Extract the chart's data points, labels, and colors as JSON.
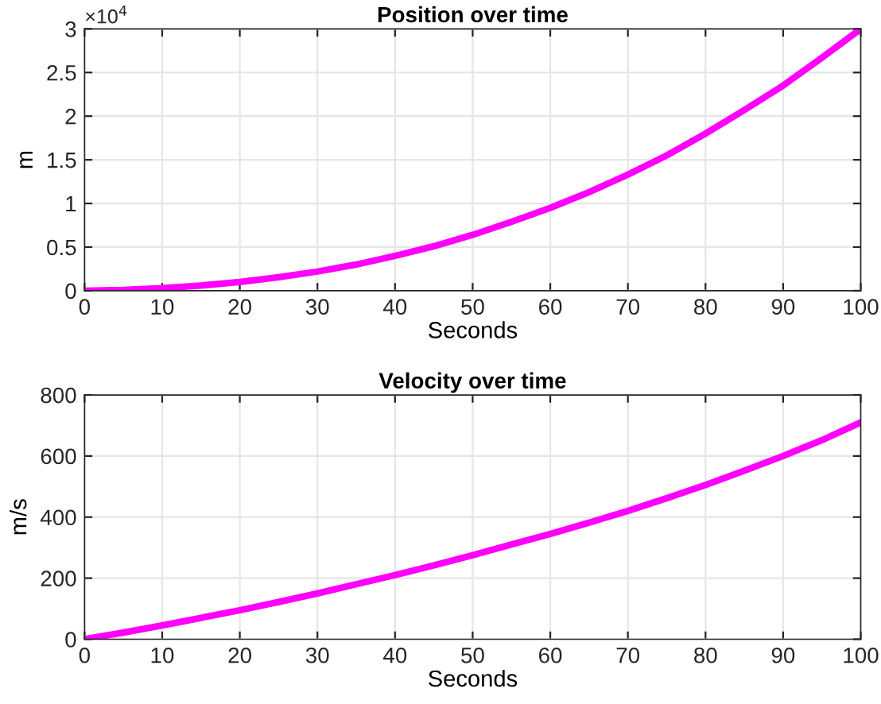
{
  "chart_data": [
    {
      "type": "line",
      "title": "Position over time",
      "xlabel": "Seconds",
      "ylabel": "m",
      "annotations": [
        "×10$^{4}$"
      ],
      "series": [
        {
          "color": "#ff00ff",
          "x": [
            0,
            5,
            10,
            15,
            20,
            25,
            30,
            35,
            40,
            45,
            50,
            55,
            60,
            65,
            70,
            75,
            80,
            85,
            90,
            95,
            100
          ],
          "values": [
            0,
            0.01,
            0.03,
            0.06,
            0.1,
            0.155,
            0.22,
            0.3,
            0.4,
            0.51,
            0.64,
            0.79,
            0.95,
            1.13,
            1.33,
            1.55,
            1.8,
            2.07,
            2.35,
            2.67,
            3
          ]
        }
      ],
      "xlim": [
        0,
        100
      ],
      "xticks": [
        0,
        10,
        20,
        30,
        40,
        50,
        60,
        70,
        80,
        90,
        100
      ],
      "ylim": [
        0,
        3
      ],
      "yticks": [
        0,
        0.5,
        1,
        1.5,
        2,
        2.5,
        3
      ],
      "grid": true,
      "marker": "none",
      "line_style": "solid"
    },
    {
      "type": "line",
      "title": "Velocity over time",
      "xlabel": "Seconds",
      "ylabel": "m/s",
      "series": [
        {
          "color": "#ff00ff",
          "x": [
            0,
            5,
            10,
            15,
            20,
            25,
            30,
            35,
            40,
            45,
            50,
            55,
            60,
            65,
            70,
            75,
            80,
            85,
            90,
            95,
            100
          ],
          "values": [
            0,
            22,
            45,
            70,
            95,
            122,
            150,
            180,
            210,
            242,
            275,
            310,
            345,
            382,
            420,
            462,
            505,
            552,
            600,
            652,
            710
          ]
        }
      ],
      "xlim": [
        0,
        100
      ],
      "xticks": [
        0,
        10,
        20,
        30,
        40,
        50,
        60,
        70,
        80,
        90,
        100
      ],
      "ylim": [
        0,
        800
      ],
      "yticks": [
        0,
        200,
        400,
        600,
        800
      ],
      "grid": true,
      "marker": "none",
      "line_style": "solid"
    }
  ]
}
